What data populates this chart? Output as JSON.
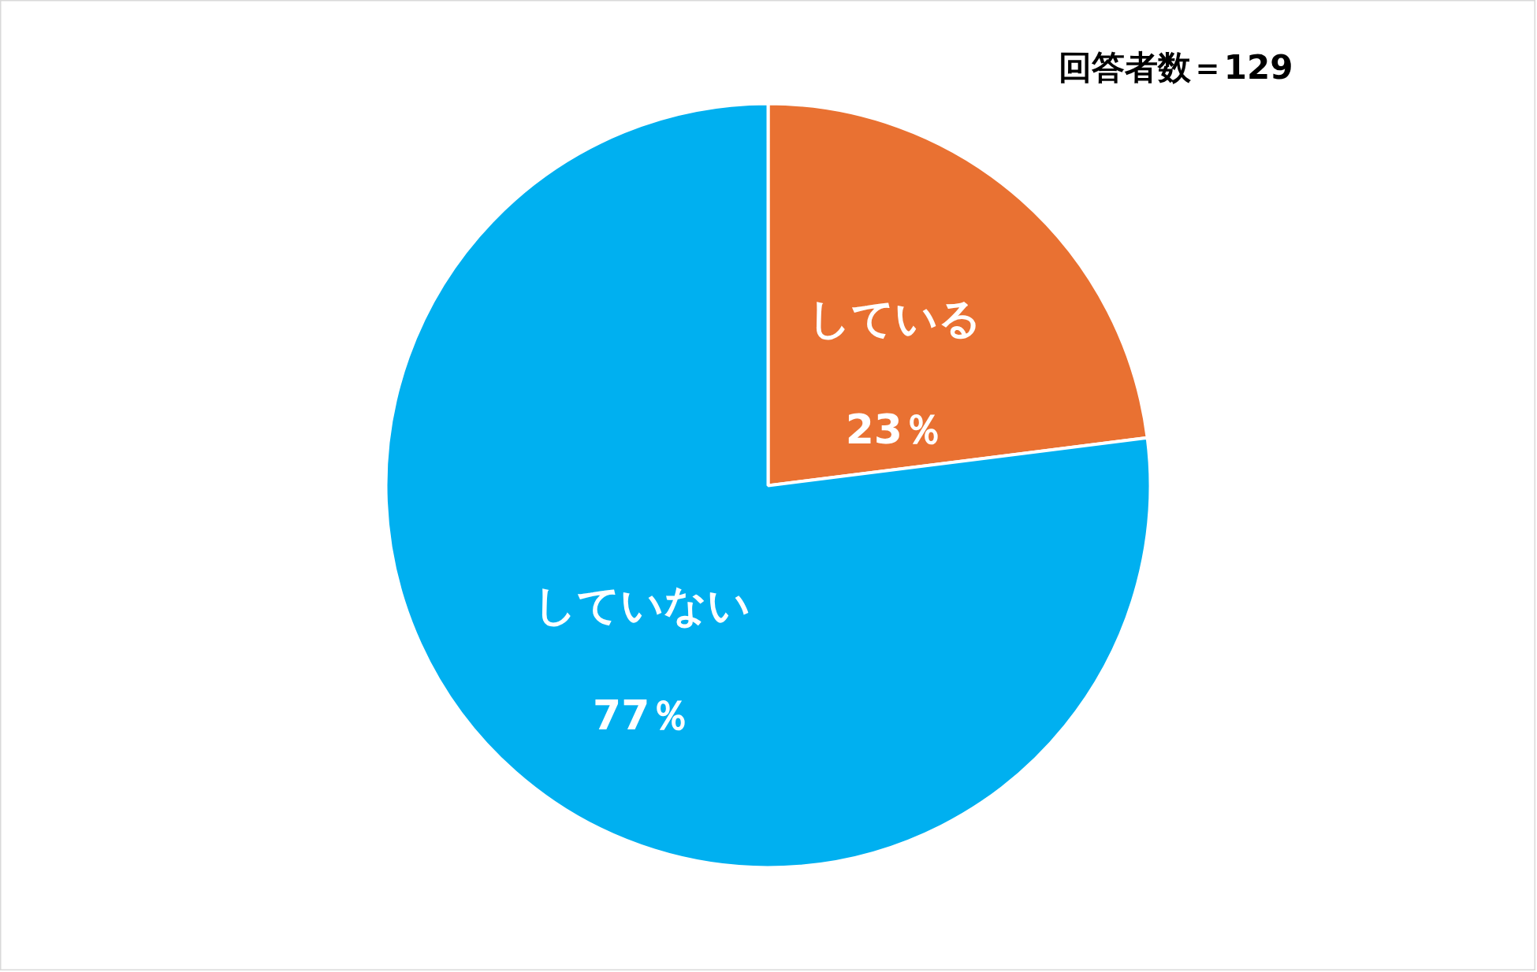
{
  "chart_data": {
    "type": "pie",
    "categories": [
      "している",
      "していない"
    ],
    "values": [
      23,
      77
    ],
    "colors": [
      "#e97132",
      "#00b0f0"
    ],
    "value_labels": [
      "23％",
      "77％"
    ],
    "annotations": [
      "回答者数＝129"
    ]
  }
}
